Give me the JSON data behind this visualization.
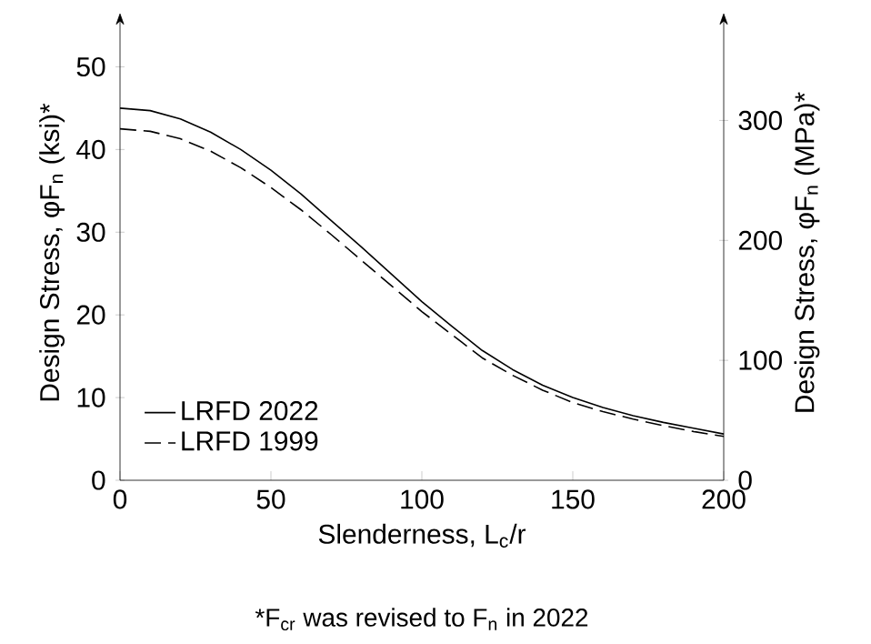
{
  "chart_data": {
    "type": "line",
    "xlabel": "Slenderness, L$_{c}$/r",
    "ylabel": "Design Stress, φF$_{n}$  (ksi)*",
    "y2label": "Design Stress, φF$_{n}$  (MPa)*",
    "x": [
      0,
      10,
      20,
      30,
      40,
      50,
      60,
      70,
      80,
      90,
      100,
      110,
      120,
      130,
      140,
      150,
      160,
      170,
      180,
      190,
      200
    ],
    "series": [
      {
        "name": "LRFD 2022",
        "color": "#000000",
        "line_style": "solid",
        "values": [
          45,
          44.7,
          43.7,
          42.1,
          40.0,
          37.5,
          34.6,
          31.4,
          28.2,
          24.9,
          21.6,
          18.6,
          15.7,
          13.4,
          11.5,
          10.0,
          8.8,
          7.8,
          7.0,
          6.3,
          5.6
        ]
      },
      {
        "name": "LRFD 1999",
        "color": "#000000",
        "line_style": "dashed",
        "values": [
          42.5,
          42.2,
          41.3,
          39.8,
          37.8,
          35.4,
          32.7,
          29.7,
          26.6,
          23.5,
          20.4,
          17.6,
          14.8,
          12.7,
          10.9,
          9.4,
          8.3,
          7.4,
          6.6,
          5.9,
          5.3
        ]
      }
    ],
    "xlim": [
      0,
      200
    ],
    "xticks": [
      0,
      50,
      100,
      150,
      200
    ],
    "ylim": [
      0,
      55
    ],
    "yticks": [
      0,
      10,
      20,
      30,
      40,
      50
    ],
    "y2lim": [
      0,
      379.2
    ],
    "y2ticks": [
      0,
      100,
      200,
      300
    ],
    "legend": "bottom left",
    "grid": false,
    "marker": "none",
    "annotations": [
      "*F$_{cr}$ was revised to F$_{n}$ in 2022"
    ]
  }
}
